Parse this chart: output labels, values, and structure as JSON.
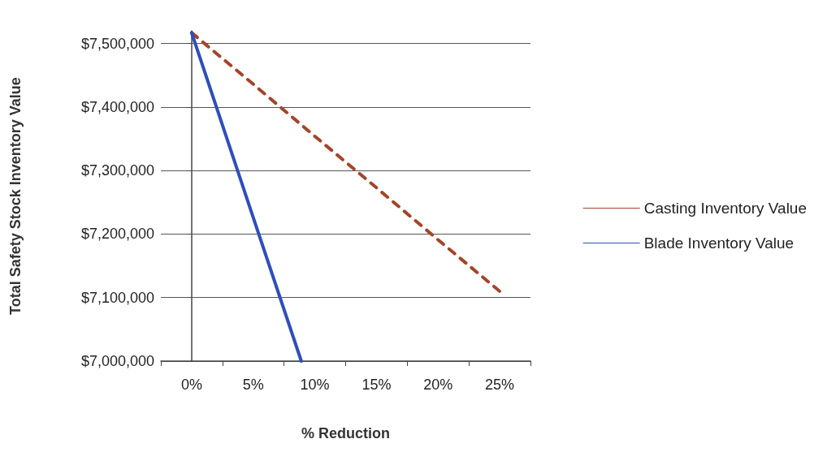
{
  "chart_data": {
    "type": "line",
    "xlabel": "% Reduction",
    "ylabel": "Total Safety Stock Inventory Value",
    "x": [
      0,
      5,
      10,
      15,
      20,
      25
    ],
    "series": [
      {
        "name": "Casting Inventory Value",
        "color": "#a3452a",
        "line_style": "dashed",
        "values": [
          7517000,
          7436000,
          7354000,
          7273000,
          7191000,
          7110000
        ]
      },
      {
        "name": "Blade Inventory Value",
        "color": "#2f4fb8",
        "line_style": "solid",
        "x": [
          0,
          5,
          8.9
        ],
        "values": [
          7517000,
          7226000,
          7000000
        ]
      }
    ],
    "xlim": [
      -2.5,
      27.5
    ],
    "xticks": [
      {
        "value": 0,
        "label": "0%"
      },
      {
        "value": 5,
        "label": "5%"
      },
      {
        "value": 10,
        "label": "10%"
      },
      {
        "value": 15,
        "label": "15%"
      },
      {
        "value": 20,
        "label": "20%"
      },
      {
        "value": 25,
        "label": "25%"
      }
    ],
    "ylim": [
      7000000,
      7520000
    ],
    "yticks": [
      {
        "value": 7000000,
        "label": "$7,000,000"
      },
      {
        "value": 7100000,
        "label": "$7,100,000"
      },
      {
        "value": 7200000,
        "label": "$7,200,000"
      },
      {
        "value": 7300000,
        "label": "$7,300,000"
      },
      {
        "value": 7400000,
        "label": "$7,400,000"
      },
      {
        "value": 7500000,
        "label": "$7,500,000"
      }
    ],
    "grid": "y",
    "legend": "right",
    "marker": "none"
  }
}
